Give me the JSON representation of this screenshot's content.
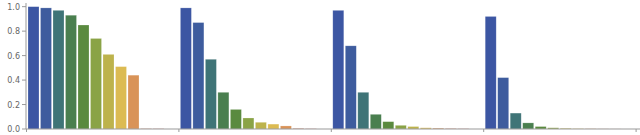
{
  "chart_data": {
    "type": "bar",
    "categories": [
      null,
      null,
      null,
      null
    ],
    "series": [
      {
        "color": "#3c56a3",
        "values": [
          1.0,
          0.99,
          0.97,
          0.92
        ]
      },
      {
        "color": "#3e5c9e",
        "values": [
          0.99,
          0.87,
          0.68,
          0.42
        ]
      },
      {
        "color": "#3f7477",
        "values": [
          0.97,
          0.57,
          0.3,
          0.13
        ]
      },
      {
        "color": "#4a7f4f",
        "values": [
          0.93,
          0.3,
          0.12,
          0.05
        ]
      },
      {
        "color": "#5a8a3f",
        "values": [
          0.85,
          0.16,
          0.06,
          0.02
        ]
      },
      {
        "color": "#8aa346",
        "values": [
          0.74,
          0.09,
          0.03,
          0.01
        ]
      },
      {
        "color": "#bdb34c",
        "values": [
          0.61,
          0.055,
          0.02,
          0.006
        ]
      },
      {
        "color": "#dcbb52",
        "values": [
          0.51,
          0.04,
          0.01,
          0.003
        ]
      },
      {
        "color": "#d99358",
        "values": [
          0.44,
          0.025,
          0.007,
          0.002
        ]
      },
      {
        "color": "#cf7a5a",
        "values": [
          0.003,
          0.005,
          0.004,
          0.001
        ]
      },
      {
        "color": "#c4645a",
        "values": [
          0.002,
          0.002,
          0.002,
          0.0005
        ]
      }
    ],
    "ylim": [
      0,
      1.03
    ],
    "yticks": [
      {
        "value": 0,
        "label": "0.0"
      },
      0.2,
      0.4,
      0.6,
      0.8,
      {
        "value": 1,
        "label": "1.0"
      }
    ],
    "grid": false,
    "tick_labels": "y"
  }
}
